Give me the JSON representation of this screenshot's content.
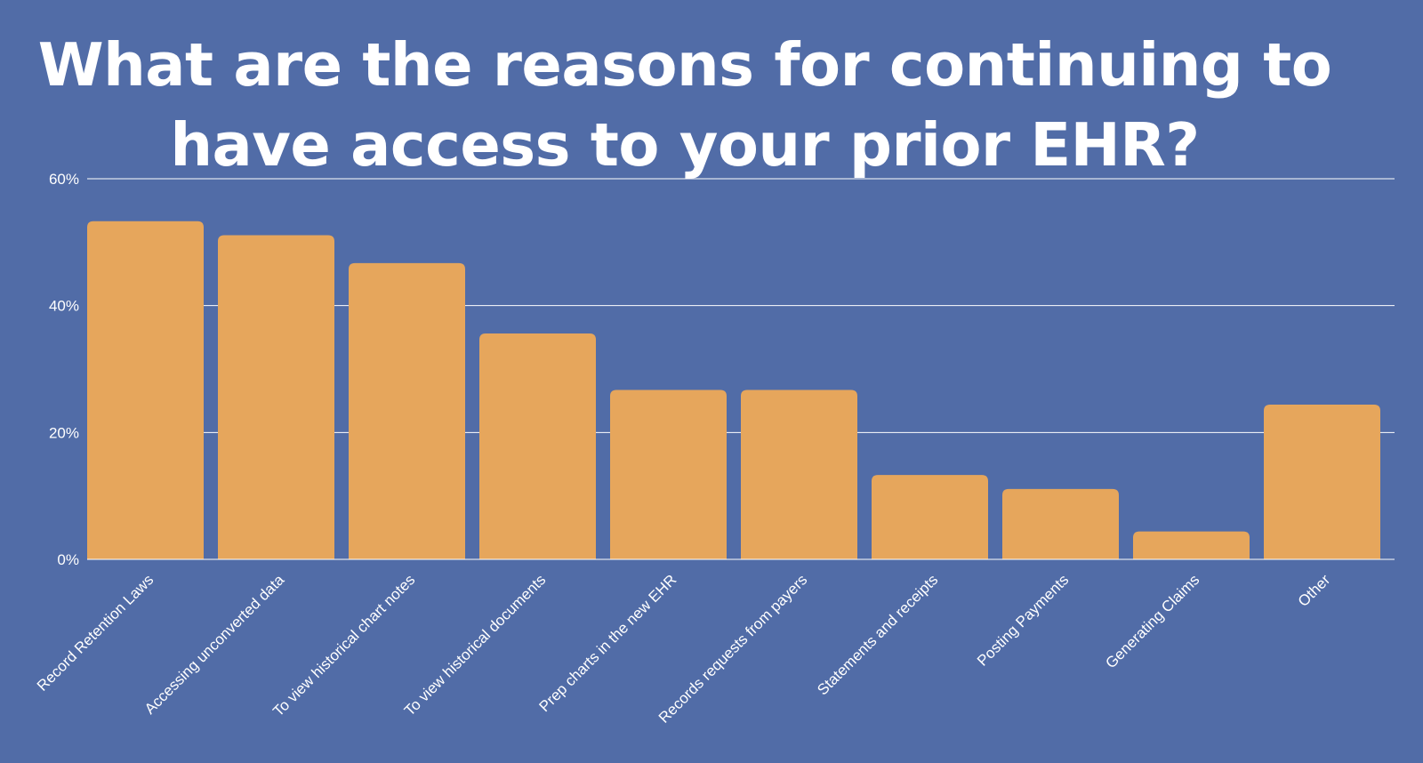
{
  "title": {
    "line1": "What are the reasons for continuing to",
    "line2": "have access to your prior EHR?"
  },
  "colors": {
    "background": "#516ca7",
    "bar": "#e6a65c",
    "grid": "#ffffff",
    "text": "#ffffff"
  },
  "chart_data": {
    "type": "bar",
    "categories": [
      "Record Retention Laws",
      "Accessing unconverted data",
      "To view historical chart notes",
      "To view historical documents",
      "Prep charts in the new EHR",
      "Records requests from payers",
      "Statements and receipts",
      "Posting Payments",
      "Generating Claims",
      "Other"
    ],
    "values": [
      53.3,
      51.1,
      46.7,
      35.6,
      26.7,
      26.7,
      13.3,
      11.1,
      4.4,
      24.4
    ],
    "yticks": [
      "0%",
      "20%",
      "40%",
      "60%"
    ],
    "ylim": [
      0,
      60
    ],
    "grid": true
  }
}
